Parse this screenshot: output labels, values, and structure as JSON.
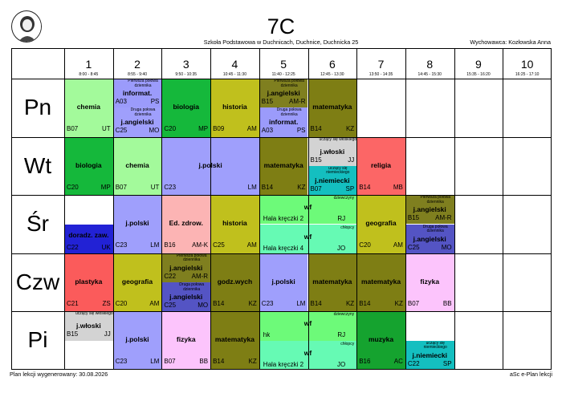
{
  "header": {
    "class_name": "7C",
    "school": "Szkoła Podstawowa w Duchnicach, Duchnice, Duchnicka 25",
    "teacher": "Wychowawca: Kozłowska Anna"
  },
  "footer": {
    "generated": "Plan lekcji wygenerowany: 30.08.2026",
    "app": "aSc e-Plan lekcji"
  },
  "periods": [
    {
      "num": "1",
      "time": "8:00 - 8:45"
    },
    {
      "num": "2",
      "time": "8:55 - 9:40"
    },
    {
      "num": "3",
      "time": "9:50 - 10:35"
    },
    {
      "num": "4",
      "time": "10:45 - 11:30"
    },
    {
      "num": "5",
      "time": "11:40 - 12:25"
    },
    {
      "num": "6",
      "time": "12:45 - 13:30"
    },
    {
      "num": "7",
      "time": "13:50 - 14:35"
    },
    {
      "num": "8",
      "time": "14:45 - 15:30"
    },
    {
      "num": "9",
      "time": "15:35 - 16:20"
    },
    {
      "num": "10",
      "time": "16:25 - 17:10"
    }
  ],
  "days": [
    "Pn",
    "Wt",
    "Śr",
    "Czw",
    "Pi"
  ],
  "colors": {
    "chemia": "#a3fa9b",
    "biologia": "#15b83b",
    "historia": "#c0c01d",
    "informatyka": "#9b9bfb",
    "j_angielski": "#7f7f1f",
    "j_polski": "#9f9ffc",
    "matematyka": "#7e7e14",
    "religia": "#fc6666",
    "j_wloski": "#d3d3d3",
    "j_niemiecki": "#14bfc0",
    "doradztwo": "#2222d5",
    "ed_zdrowotna": "#fcb4b4",
    "wf_dz": "#6dfa79",
    "wf_ch": "#66fab4",
    "geografia": "#c0c01d",
    "angielski_grp": "#5454c4",
    "plastyka": "#fb5b5b",
    "godz_wych": "#7e7e14",
    "fizyka": "#fcc4fc",
    "muzyka": "#15a32f"
  },
  "lessons": [
    {
      "day": 0,
      "p": 0,
      "span": 1,
      "half": "full",
      "subject": "chemia",
      "room": "B07",
      "teacher": "UT",
      "color": "chemia"
    },
    {
      "day": 0,
      "p": 1,
      "span": 1,
      "half": "top",
      "group": "Pierwsza połowa dziennika",
      "subject": "informat.",
      "room": "A03",
      "teacher": "PS",
      "color": "informatyka"
    },
    {
      "day": 0,
      "p": 1,
      "span": 1,
      "half": "bottom",
      "group": "Druga połowa dziennika",
      "subject": "j.angielski",
      "room": "C25",
      "teacher": "MO",
      "color": "j_polski"
    },
    {
      "day": 0,
      "p": 2,
      "span": 1,
      "half": "full",
      "subject": "biologia",
      "room": "C20",
      "teacher": "MP",
      "color": "biologia"
    },
    {
      "day": 0,
      "p": 3,
      "span": 1,
      "half": "full",
      "subject": "historia",
      "room": "B09",
      "teacher": "AM",
      "color": "historia"
    },
    {
      "day": 0,
      "p": 4,
      "span": 1,
      "half": "top",
      "group": "Pierwsza połowa dziennika",
      "subject": "j.angielski",
      "room": "B15",
      "teacher": "AM-R",
      "color": "j_angielski"
    },
    {
      "day": 0,
      "p": 4,
      "span": 1,
      "half": "bottom",
      "group": "Druga połowa dziennika",
      "subject": "informat.",
      "room": "A03",
      "teacher": "PS",
      "color": "informatyka"
    },
    {
      "day": 0,
      "p": 5,
      "span": 1,
      "half": "full",
      "subject": "matematyka",
      "room": "B14",
      "teacher": "KZ",
      "color": "matematyka"
    },
    {
      "day": 1,
      "p": 0,
      "span": 1,
      "half": "full",
      "subject": "biologia",
      "room": "C20",
      "teacher": "MP",
      "color": "biologia"
    },
    {
      "day": 1,
      "p": 1,
      "span": 1,
      "half": "full",
      "subject": "chemia",
      "room": "B07",
      "teacher": "UT",
      "color": "chemia"
    },
    {
      "day": 1,
      "p": 2,
      "span": 2,
      "half": "full",
      "subject": "j.polski",
      "room": "C23",
      "teacher": "LM",
      "color": "j_polski"
    },
    {
      "day": 1,
      "p": 4,
      "span": 1,
      "half": "full",
      "subject": "matematyka",
      "room": "B14",
      "teacher": "KZ",
      "color": "matematyka"
    },
    {
      "day": 1,
      "p": 5,
      "span": 1,
      "half": "top",
      "group": "uczący się włoskiego",
      "subject": "j.włoski",
      "room": "B15",
      "teacher": "JJ",
      "color": "j_wloski"
    },
    {
      "day": 1,
      "p": 5,
      "span": 1,
      "half": "bottom",
      "group": "uczący się niemieckiego",
      "subject": "j.niemiecki",
      "room": "B07",
      "teacher": "SP",
      "color": "j_niemiecki"
    },
    {
      "day": 1,
      "p": 6,
      "span": 1,
      "half": "full",
      "subject": "religia",
      "room": "B14",
      "teacher": "MB",
      "color": "religia"
    },
    {
      "day": 2,
      "p": 0,
      "span": 1,
      "half": "bottom",
      "subject": "doradz. zaw.",
      "room": "C22",
      "teacher": "UK",
      "color": "doradztwo"
    },
    {
      "day": 2,
      "p": 1,
      "span": 1,
      "half": "full",
      "subject": "j.polski",
      "room": "C23",
      "teacher": "LM",
      "color": "j_polski"
    },
    {
      "day": 2,
      "p": 2,
      "span": 1,
      "half": "full",
      "subject": "Ed. zdrow.",
      "room": "B16",
      "teacher": "AM-K",
      "color": "ed_zdrowotna"
    },
    {
      "day": 2,
      "p": 3,
      "span": 1,
      "half": "full",
      "subject": "historia",
      "room": "C25",
      "teacher": "AM",
      "color": "historia"
    },
    {
      "day": 2,
      "p": 4,
      "span": 2,
      "half": "wf_top",
      "group": "dziewczyny",
      "subject": "wf",
      "room": "Hala kręczki 2",
      "teacher": "RJ",
      "color": "wf_dz"
    },
    {
      "day": 2,
      "p": 4,
      "span": 2,
      "half": "wf_bottom",
      "group": "chłopcy",
      "subject": "wf",
      "room": "Hala kręczki 4",
      "teacher": "JO",
      "color": "wf_ch"
    },
    {
      "day": 2,
      "p": 6,
      "span": 1,
      "half": "full",
      "subject": "geografia",
      "room": "C20",
      "teacher": "AM",
      "color": "geografia"
    },
    {
      "day": 2,
      "p": 7,
      "span": 1,
      "half": "top",
      "group": "Pierwsza połowa dziennika",
      "subject": "j.angielski",
      "room": "B15",
      "teacher": "AM-R",
      "color": "j_angielski"
    },
    {
      "day": 2,
      "p": 7,
      "span": 1,
      "half": "bottom",
      "group": "Druga połowa dziennika",
      "subject": "j.angielski",
      "room": "C25",
      "teacher": "MO",
      "color": "angielski_grp"
    },
    {
      "day": 3,
      "p": 0,
      "span": 1,
      "half": "full",
      "subject": "plastyka",
      "room": "C21",
      "teacher": "ZS",
      "color": "plastyka"
    },
    {
      "day": 3,
      "p": 1,
      "span": 1,
      "half": "full",
      "subject": "geografia",
      "room": "C20",
      "teacher": "AM",
      "color": "geografia"
    },
    {
      "day": 3,
      "p": 2,
      "span": 1,
      "half": "top",
      "group": "Pierwsza połowa dziennika",
      "subject": "j.angielski",
      "room": "C22",
      "teacher": "AM-R",
      "color": "j_angielski"
    },
    {
      "day": 3,
      "p": 2,
      "span": 1,
      "half": "bottom",
      "group": "Druga połowa dziennika",
      "subject": "j.angielski",
      "room": "C25",
      "teacher": "MO",
      "color": "angielski_grp"
    },
    {
      "day": 3,
      "p": 3,
      "span": 1,
      "half": "full",
      "subject": "godz.wych",
      "room": "B14",
      "teacher": "KZ",
      "color": "godz_wych"
    },
    {
      "day": 3,
      "p": 4,
      "span": 1,
      "half": "full",
      "subject": "j.polski",
      "room": "C23",
      "teacher": "LM",
      "color": "j_polski"
    },
    {
      "day": 3,
      "p": 5,
      "span": 1,
      "half": "full",
      "subject": "matematyka",
      "room": "B14",
      "teacher": "KZ",
      "color": "matematyka"
    },
    {
      "day": 3,
      "p": 6,
      "span": 1,
      "half": "full",
      "subject": "matematyka",
      "room": "B14",
      "teacher": "KZ",
      "color": "matematyka"
    },
    {
      "day": 3,
      "p": 7,
      "span": 1,
      "half": "full",
      "subject": "fizyka",
      "room": "B07",
      "teacher": "BB",
      "color": "fizyka"
    },
    {
      "day": 4,
      "p": 0,
      "span": 1,
      "half": "top",
      "group": "uczący się włoskiego",
      "subject": "j.włoski",
      "room": "B15",
      "teacher": "JJ",
      "color": "j_wloski"
    },
    {
      "day": 4,
      "p": 1,
      "span": 1,
      "half": "full",
      "subject": "j.polski",
      "room": "C23",
      "teacher": "LM",
      "color": "j_polski"
    },
    {
      "day": 4,
      "p": 2,
      "span": 1,
      "half": "full",
      "subject": "fizyka",
      "room": "B07",
      "teacher": "BB",
      "color": "fizyka"
    },
    {
      "day": 4,
      "p": 3,
      "span": 1,
      "half": "full",
      "subject": "matematyka",
      "room": "B14",
      "teacher": "KZ",
      "color": "matematyka"
    },
    {
      "day": 4,
      "p": 4,
      "span": 2,
      "half": "wf_top",
      "group": "dziewczyny",
      "subject": "wf",
      "room": "hk",
      "teacher": "RJ",
      "color": "wf_dz"
    },
    {
      "day": 4,
      "p": 4,
      "span": 2,
      "half": "wf_bottom",
      "group": "chłopcy",
      "subject": "wf",
      "room": "Hala kręczki 2",
      "teacher": "JO",
      "color": "wf_ch"
    },
    {
      "day": 4,
      "p": 6,
      "span": 1,
      "half": "full",
      "subject": "muzyka",
      "room": "B16",
      "teacher": "AC",
      "color": "muzyka"
    },
    {
      "day": 4,
      "p": 7,
      "span": 1,
      "half": "bottom",
      "group": "uczący się niemieckiego",
      "subject": "j.niemiecki",
      "room": "C22",
      "teacher": "SP",
      "color": "j_niemiecki"
    }
  ]
}
